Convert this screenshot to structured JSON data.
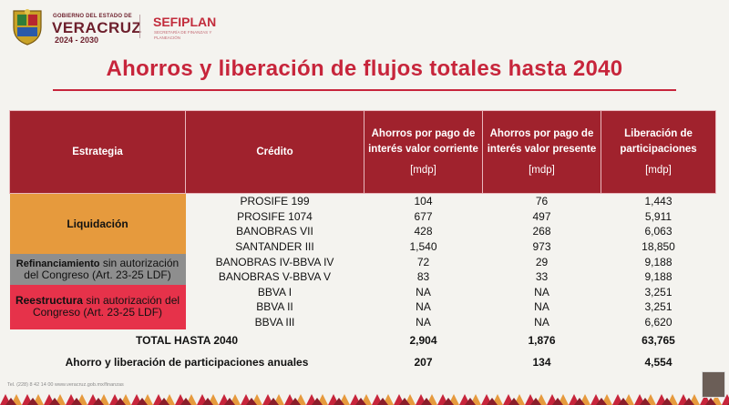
{
  "header": {
    "gov_small": "GOBIERNO DEL ESTADO DE",
    "gov_state": "VERACRUZ",
    "gov_years": "2024 - 2030",
    "agency": "SEFIPLAN",
    "agency_sub": "SECRETARÍA DE FINANZAS Y PLANEACIÓN"
  },
  "title": "Ahorros y liberación de flujos totales hasta 2040",
  "table": {
    "headers": {
      "estrategia": "Estrategia",
      "credito": "Crédito",
      "col3": "Ahorros por pago de interés valor corriente",
      "col3_unit": "[mdp]",
      "col4": "Ahorros por pago de interés valor presente",
      "col4_unit": "[mdp]",
      "col5": "Liberación de participaciones",
      "col5_unit": "[mdp]"
    },
    "strategies": {
      "liquidacion": "Liquidación",
      "refin_bold": "Refinanciamiento",
      "refin_rest": " sin autorización del Congreso (Art. 23-25 LDF)",
      "reest_bold": "Reestructura",
      "reest_rest": " sin autorización del Congreso (Art. 23-25 LDF)"
    },
    "rows": [
      {
        "credito": "PROSIFE 199",
        "corriente": "104",
        "presente": "76",
        "liberacion": "1,443"
      },
      {
        "credito": "PROSIFE 1074",
        "corriente": "677",
        "presente": "497",
        "liberacion": "5,911"
      },
      {
        "credito": "BANOBRAS VII",
        "corriente": "428",
        "presente": "268",
        "liberacion": "6,063"
      },
      {
        "credito": "SANTANDER III",
        "corriente": "1,540",
        "presente": "973",
        "liberacion": "18,850"
      },
      {
        "credito": "BANOBRAS IV-BBVA IV",
        "corriente": "72",
        "presente": "29",
        "liberacion": "9,188"
      },
      {
        "credito": "BANOBRAS V-BBVA V",
        "corriente": "83",
        "presente": "33",
        "liberacion": "9,188"
      },
      {
        "credito": "BBVA I",
        "corriente": "NA",
        "presente": "NA",
        "liberacion": "3,251"
      },
      {
        "credito": "BBVA II",
        "corriente": "NA",
        "presente": "NA",
        "liberacion": "3,251"
      },
      {
        "credito": "BBVA III",
        "corriente": "NA",
        "presente": "NA",
        "liberacion": "6,620"
      }
    ],
    "total": {
      "label": "TOTAL HASTA 2040",
      "corriente": "2,904",
      "presente": "1,876",
      "liberacion": "63,765"
    },
    "annual": {
      "label": "Ahorro y liberación de participaciones anuales",
      "corriente": "207",
      "presente": "134",
      "liberacion": "4,554"
    }
  },
  "footer": {
    "text": "Tel. (228) 8 42 14 00   www.veracruz.gob.mx/finanzas"
  },
  "colors": {
    "accent": "#c7253b",
    "header_bg": "#a0222d",
    "liquidacion": "#e69a3d",
    "refinanciamiento": "#8e8e8e",
    "reestructura": "#e6324a"
  }
}
